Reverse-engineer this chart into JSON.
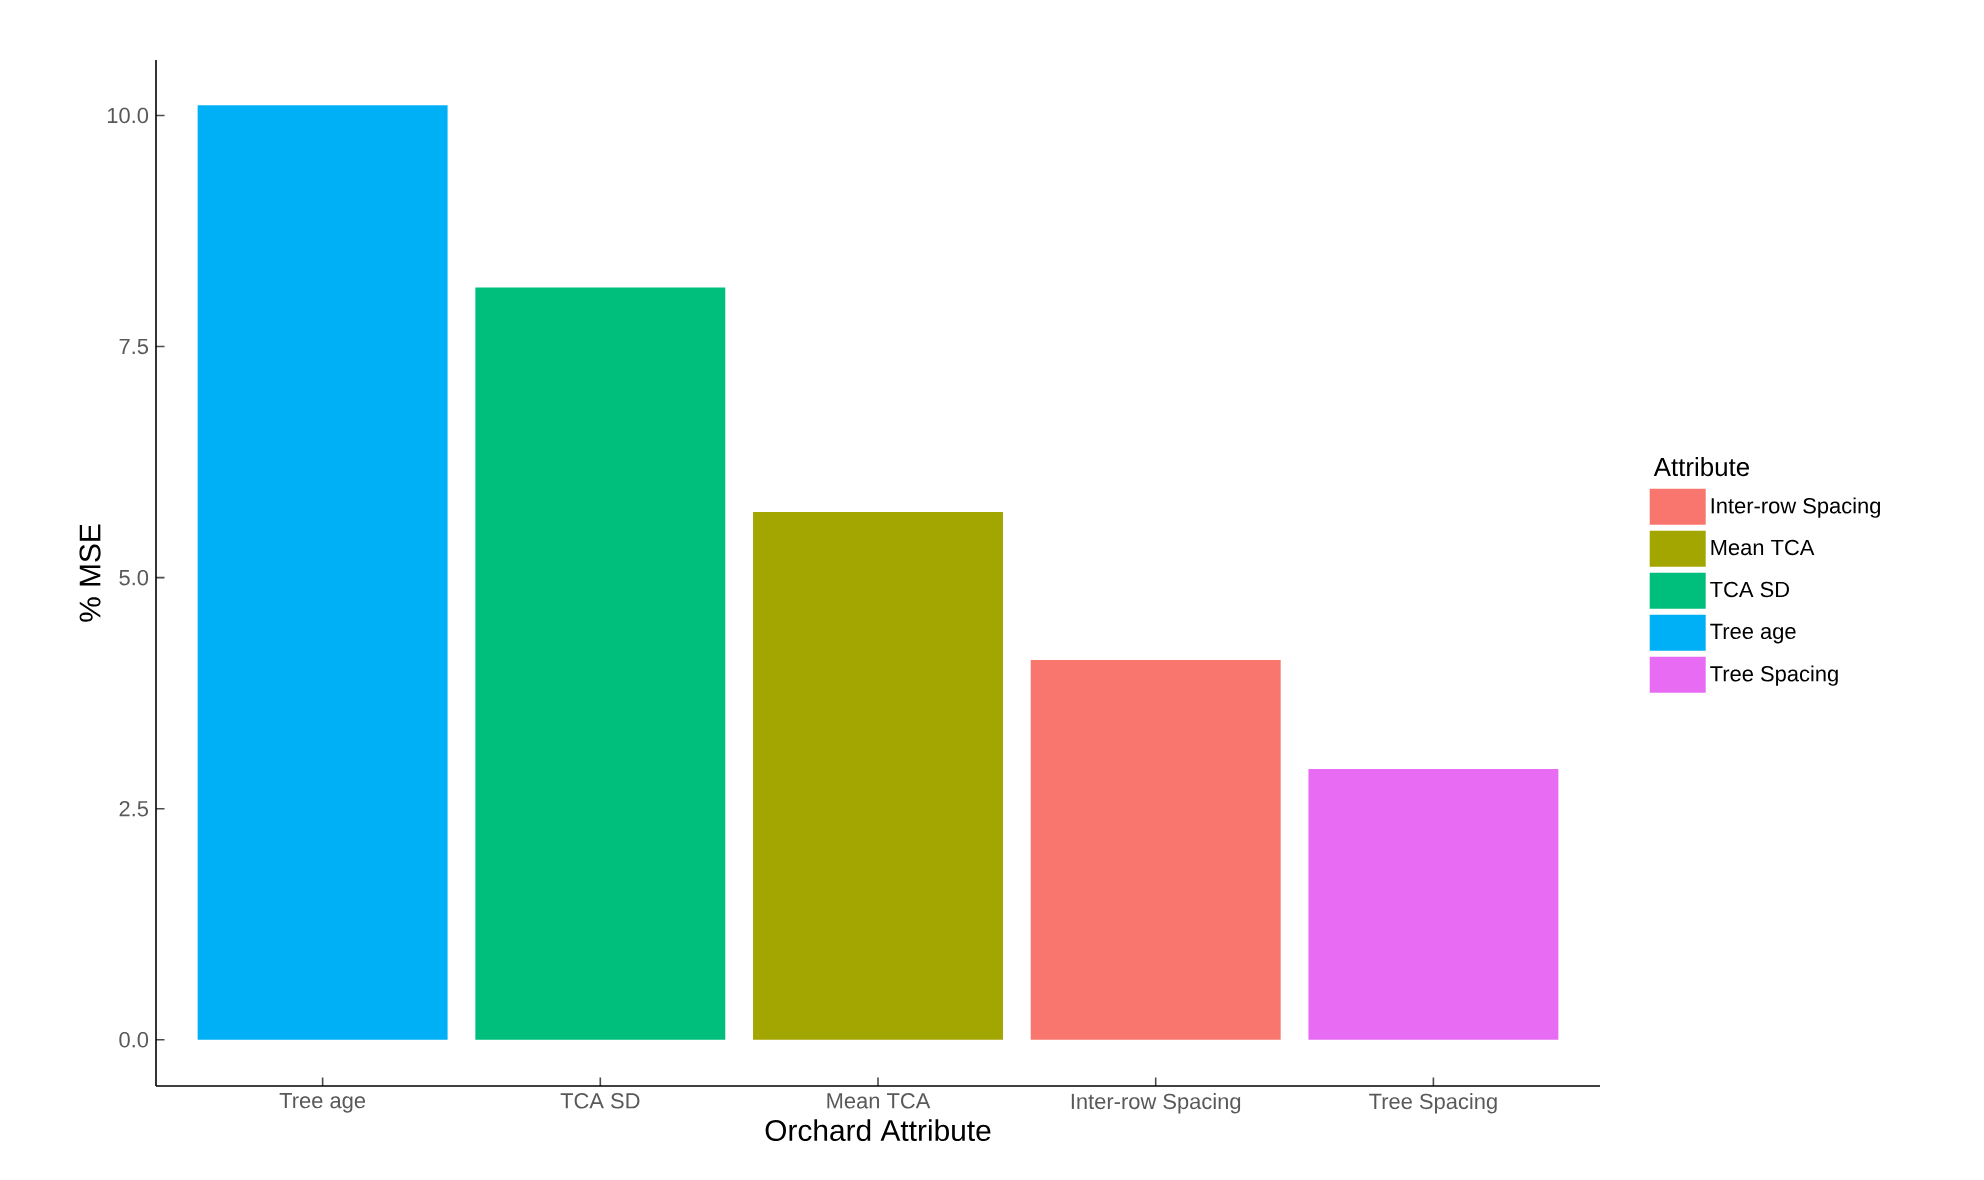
{
  "chart_data": {
    "type": "bar",
    "xlabel": "Orchard Attribute",
    "ylabel": "% MSE",
    "legend_title": "Attribute",
    "categories": [
      "Tree age",
      "TCA SD",
      "Mean TCA",
      "Inter-row Spacing",
      "Tree Spacing"
    ],
    "series": [
      {
        "name": "Inter-row Spacing",
        "color": "#f8766d",
        "values": [
          null,
          null,
          null,
          4.11,
          null
        ]
      },
      {
        "name": "Mean TCA",
        "color": "#a3a500",
        "values": [
          null,
          null,
          5.71,
          null,
          null
        ]
      },
      {
        "name": "TCA SD",
        "color": "#00bf7d",
        "values": [
          null,
          8.14,
          null,
          null,
          null
        ]
      },
      {
        "name": "Tree age",
        "color": "#00b0f6",
        "values": [
          10.11,
          null,
          null,
          null,
          null
        ]
      },
      {
        "name": "Tree Spacing",
        "color": "#e76bf3",
        "values": [
          null,
          null,
          null,
          null,
          2.93
        ]
      }
    ],
    "ylim": [
      -0.5,
      10.6
    ],
    "yticks": [
      {
        "value": 0,
        "label": "0.0"
      },
      {
        "value": 2.5,
        "label": "2.5"
      },
      {
        "value": 5,
        "label": "5.0"
      },
      {
        "value": 7.5,
        "label": "7.5"
      },
      {
        "value": 10,
        "label": "10.0"
      }
    ],
    "legend": "right"
  }
}
